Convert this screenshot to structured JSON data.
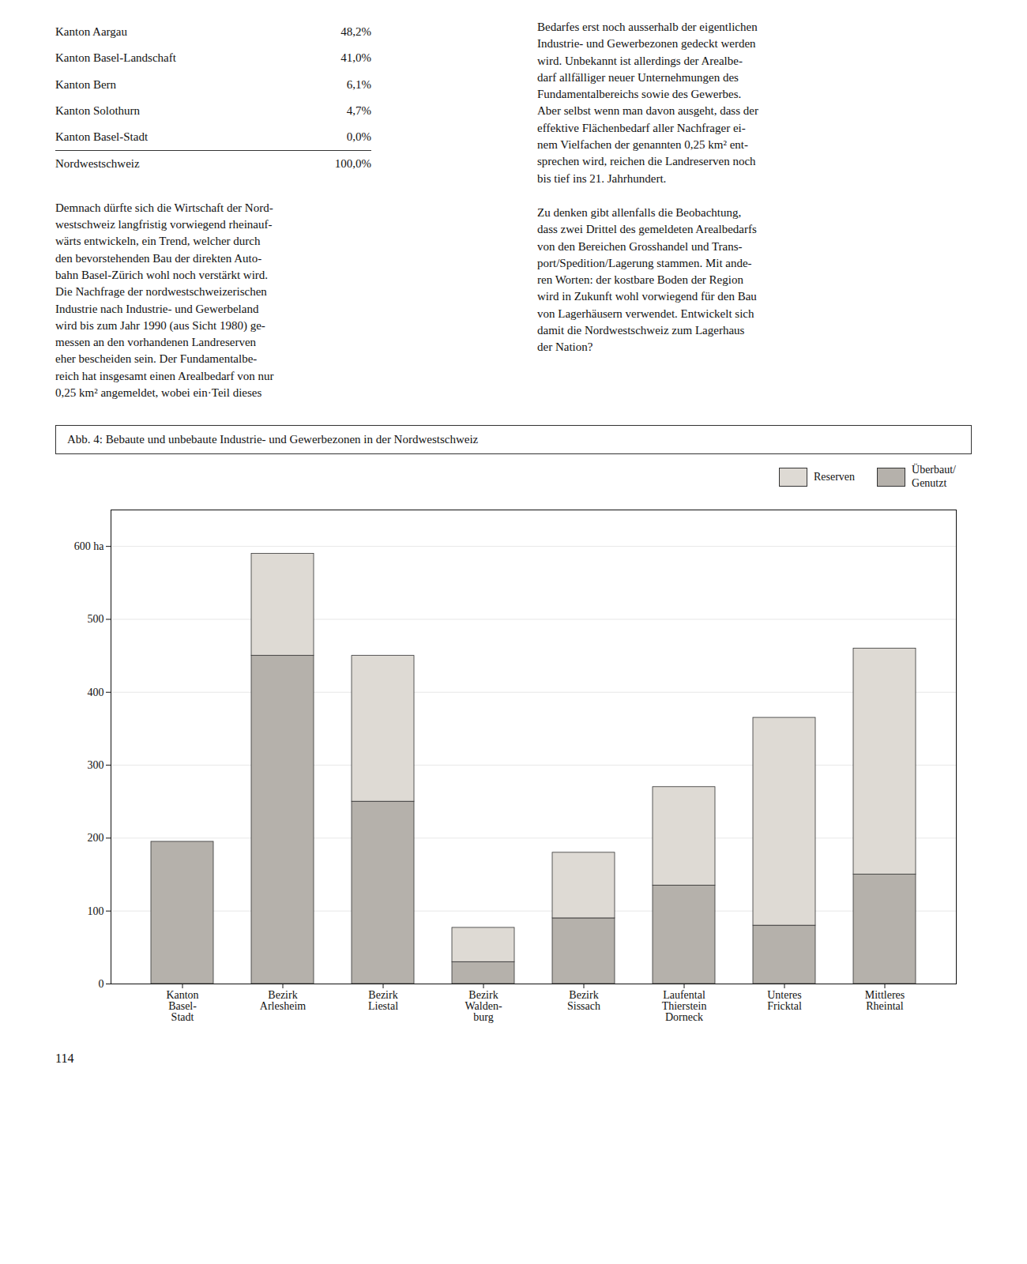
{
  "chart_data": {
    "type": "bar",
    "stacked": true,
    "title": "Abb. 4:  Bebaute und unbebaute Industrie- und Gewerbezonen in der Nordwestschweiz",
    "categories": [
      "Kanton\nBasel-\nStadt",
      "Bezirk\nArlesheim",
      "Bezirk\nLiestal",
      "Bezirk\nWalden-\nburg",
      "Bezirk\nSissach",
      "Laufental\nThierstein\nDorneck",
      "Unteres\nFricktal",
      "Mittleres\nRheintal"
    ],
    "series": [
      {
        "name": "Überbaut/\nGenutzt",
        "color": "#b5b1ab",
        "values": [
          195,
          450,
          250,
          30,
          90,
          135,
          80,
          150
        ]
      },
      {
        "name": "Reserven",
        "color": "#dedad4",
        "values": [
          0,
          140,
          200,
          47,
          90,
          135,
          285,
          310
        ]
      }
    ],
    "ylim": [
      0,
      650
    ],
    "yticks": [
      0,
      100,
      200,
      300,
      400,
      500,
      {
        "value": 600,
        "label": "600 ha"
      }
    ],
    "grid": true,
    "legend": "upper right",
    "table": [
      [
        "Kanton Aargau",
        "48,2%"
      ],
      [
        "Kanton Basel-Landschaft",
        "41,0%"
      ],
      [
        "Kanton Bern",
        "6,1%"
      ],
      [
        "Kanton Solothurn",
        "4,7%"
      ],
      [
        "Kanton Basel-Stadt",
        "0,0%"
      ],
      [
        "Nordwestschweiz",
        "100,0%"
      ]
    ],
    "annotations": [
      "Demnach dürfte sich die Wirtschaft der Nord-\nwestschweiz langfristig vorwiegend rheinauf-\nwärts entwickeln, ein Trend, welcher durch\nden bevorstehenden Bau der direkten Auto-\nbahn Basel-Zürich wohl noch verstärkt wird.\nDie Nachfrage der nordwestschweizerischen\nIndustrie nach Industrie- und Gewerbeland\nwird bis zum Jahr 1990 (aus Sicht 1980) ge-\nmessen an den vorhandenen Landreserven\neher bescheiden sein. Der Fundamentalbe-\nreich hat insgesamt einen Arealbedarf von nur\n0,25 km² angemeldet, wobei ein·Teil dieses",
      "Bedarfes erst noch ausserhalb der eigentlichen\nIndustrie- und Gewerbezonen gedeckt werden\nwird. Unbekannt ist allerdings der Arealbe-\ndarf allfälliger neuer Unternehmungen des\nFundamentalbereichs sowie des Gewerbes.\nAber selbst wenn man davon ausgeht, dass der\neffektive Flächenbedarf aller Nachfrager ei-\nnem Vielfachen der genannten 0,25 km² ent-\nsprechen wird, reichen die Landreserven noch\nbis tief ins 21. Jahrhundert.",
      "Zu denken gibt allenfalls die Beobachtung,\ndass zwei Drittel des gemeldeten Arealbedarfs\nvon den Bereichen Grosshandel und Trans-\nport/Spedition/Lagerung stammen. Mit ande-\nren Worten: der kostbare Boden der Region\nwird in Zukunft wohl vorwiegend für den Bau\nvon Lagerhäusern verwendet. Entwickelt sich\ndamit die Nordwestschweiz zum Lagerhaus\nder Nation?",
      "114"
    ]
  }
}
